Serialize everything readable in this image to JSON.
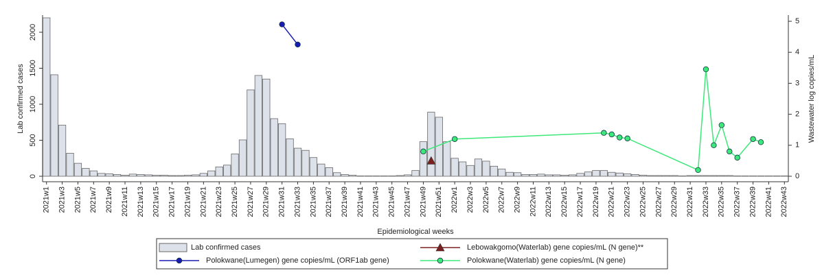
{
  "chart_data": {
    "type": "bar",
    "x_label": "Epidemiological weeks",
    "y_label": "Lab confirmed cases",
    "y2_label": "Wastewater log copies/mL",
    "categories": [
      "2021w1",
      null,
      "2021w3",
      null,
      "2021w5",
      null,
      "2021w7",
      null,
      "2021w9",
      null,
      "2021w11",
      null,
      "2021w13",
      null,
      "2021w15",
      null,
      "2021w17",
      null,
      "2021w19",
      null,
      "2021w21",
      null,
      "2021w23",
      null,
      "2021w25",
      null,
      "2021w27",
      null,
      "2021w29",
      null,
      "2021w31",
      null,
      "2021w33",
      null,
      "2021w35",
      null,
      "2021w37",
      null,
      "2021w39",
      null,
      "2021w41",
      null,
      "2021w43",
      null,
      "2021w45",
      null,
      "2021w47",
      null,
      "2021w49",
      null,
      "2021w51",
      null,
      "2022w1",
      null,
      "2022w3",
      null,
      "2022w5",
      null,
      "2022w7",
      null,
      "2022w9",
      null,
      "2022w11",
      null,
      "2022w13",
      null,
      "2022w15",
      null,
      "2022w17",
      null,
      "2022w19",
      null,
      "2022w21",
      null,
      "2022w23",
      null,
      "2022w25",
      null,
      "2022w27",
      null,
      "2022w29",
      null,
      "2022w31",
      null,
      "2022w33",
      null,
      "2022w35",
      null,
      "2022w37",
      null,
      "2022w39",
      null,
      "2022w41",
      null,
      "2022w43"
    ],
    "series": [
      {
        "name": "Lab confirmed cases",
        "type": "bar",
        "color": "#dde1ea",
        "values": [
          2200,
          1410,
          710,
          320,
          180,
          110,
          75,
          40,
          35,
          25,
          15,
          30,
          25,
          20,
          15,
          15,
          10,
          10,
          15,
          20,
          40,
          75,
          130,
          155,
          310,
          505,
          1200,
          1400,
          1350,
          800,
          730,
          520,
          390,
          360,
          260,
          170,
          120,
          50,
          25,
          15,
          5,
          5,
          5,
          5,
          5,
          10,
          20,
          80,
          480,
          890,
          820,
          480,
          250,
          200,
          150,
          240,
          210,
          140,
          100,
          55,
          50,
          25,
          25,
          30,
          20,
          20,
          15,
          20,
          40,
          60,
          80,
          80,
          55,
          45,
          35,
          25,
          15,
          10,
          10,
          10,
          10,
          5,
          10,
          10,
          10,
          10,
          10,
          10,
          5,
          5,
          5,
          5,
          5,
          5,
          5
        ]
      },
      {
        "name": "Lebowakgomo(Waterlab) gene copies/mL (N gene)**",
        "type": "line",
        "axis": "y2",
        "color": "#7a2020",
        "marker": "triangle",
        "x": [
          "2021w50"
        ],
        "values": [
          0.5
        ]
      },
      {
        "name": "Polokwane(Lumegen) gene copies/mL (ORF1ab gene)",
        "type": "line",
        "axis": "y2",
        "color": "#1a1ab4",
        "marker": "circle",
        "x": [
          "2021w31",
          "2021w33"
        ],
        "values": [
          4.9,
          4.25
        ]
      },
      {
        "name": "Polokwane(Waterlab) gene copies/mL (N gene)",
        "type": "line",
        "axis": "y2",
        "color": "#3de87a",
        "marker": "circle",
        "x": [
          "2021w49",
          "2022w1",
          "2022w20",
          "2022w21",
          "2022w22",
          "2022w23",
          "2022w32",
          "2022w33",
          "2022w34",
          "2022w35",
          "2022w36",
          "2022w37",
          "2022w39",
          "2022w40"
        ],
        "values": [
          0.8,
          1.2,
          1.4,
          1.35,
          1.25,
          1.22,
          0.2,
          3.45,
          1.0,
          1.65,
          0.8,
          0.6,
          1.2,
          1.1
        ]
      }
    ],
    "ylim": [
      -76,
      2238
    ],
    "yticks": [
      0,
      500,
      1000,
      1500,
      2000
    ],
    "y2lim": [
      -0.177,
      5.2
    ],
    "y2ticks": [
      0,
      1,
      2,
      3,
      4,
      5
    ]
  }
}
